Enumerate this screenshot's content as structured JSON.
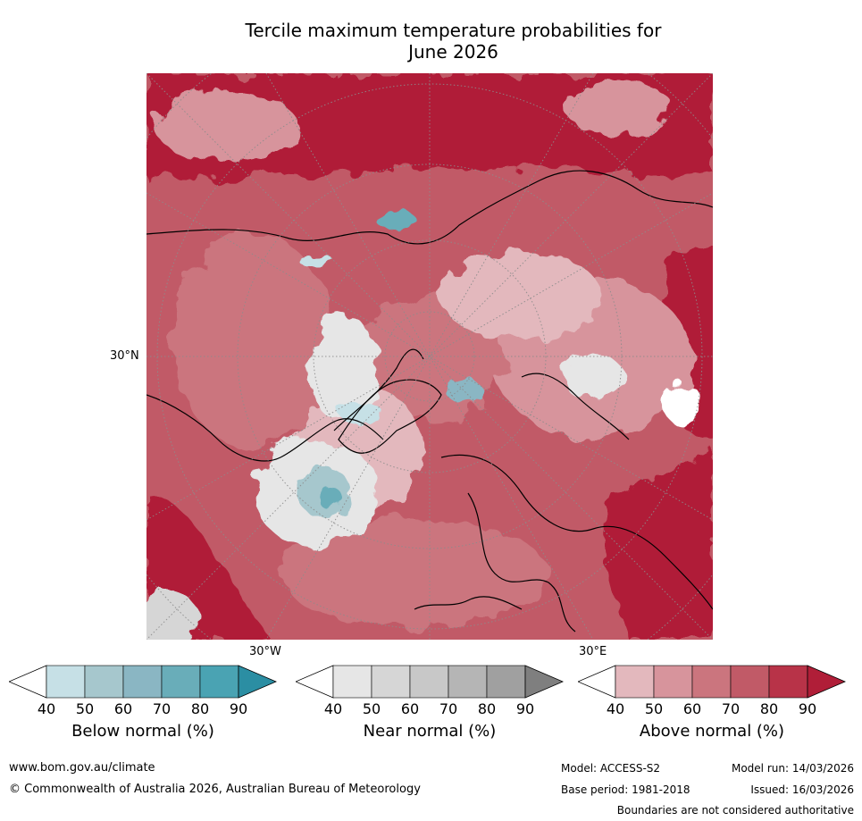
{
  "title": {
    "line1": "Tercile maximum temperature probabilities for",
    "line2": "June 2026"
  },
  "map_labels": {
    "lat_30n": "30°N",
    "lon_30w": "30°W",
    "lon_30e": "30°E"
  },
  "legends": {
    "below": {
      "title": "Below normal (%)",
      "ticks": [
        "40",
        "50",
        "60",
        "70",
        "80",
        "90"
      ],
      "colors": [
        "#ffffff",
        "#c6e0e6",
        "#a6c7cd",
        "#8ab6c3",
        "#69adb9",
        "#4aa3b3",
        "#2b8ea3"
      ]
    },
    "near": {
      "title": "Near normal (%)",
      "ticks": [
        "40",
        "50",
        "60",
        "70",
        "80",
        "90"
      ],
      "colors": [
        "#ffffff",
        "#e6e6e6",
        "#d6d6d6",
        "#c8c8c8",
        "#b5b5b5",
        "#a0a0a0",
        "#7f7f7f"
      ]
    },
    "above": {
      "title": "Above normal (%)",
      "ticks": [
        "40",
        "50",
        "60",
        "70",
        "80",
        "90"
      ],
      "colors": [
        "#ffffff",
        "#e3b8bd",
        "#d7949c",
        "#cb757e",
        "#c15a67",
        "#b83348",
        "#b01e38"
      ]
    }
  },
  "footer": {
    "website": "www.bom.gov.au/climate",
    "copyright": "© Commonwealth of Australia 2026, Australian Bureau of Meteorology",
    "model": "Model: ACCESS-S2",
    "model_run": "Model run: 14/03/2026",
    "base_period": "Base period: 1981-2018",
    "issued": "Issued: 16/03/2026",
    "disclaimer": "Boundaries are not considered authoritative"
  }
}
